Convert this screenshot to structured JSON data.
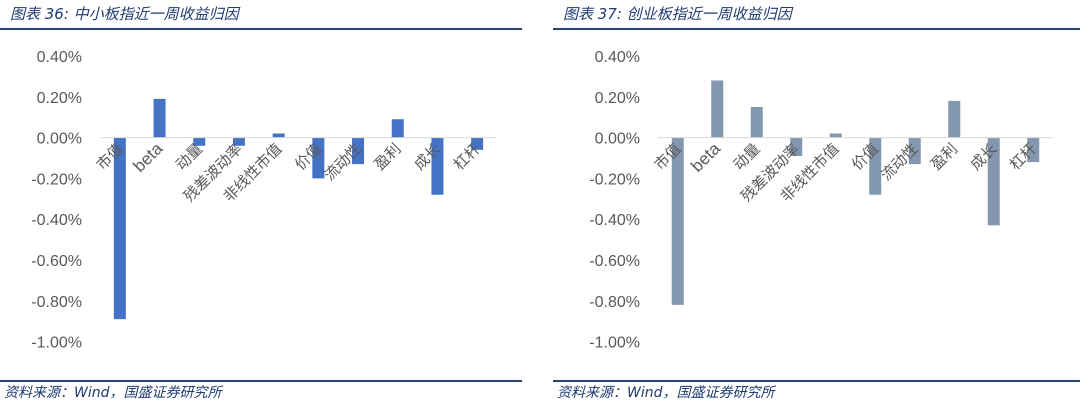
{
  "figures": [
    {
      "title": "图表 36:  中小板指近一周收益归因",
      "source": "资料来源：Wind，国盛证券研究所",
      "color": "#4472C4",
      "chart_data": {
        "type": "bar",
        "title": "图表 36:  中小板指近一周收益归因",
        "categories": [
          "市值",
          "beta",
          "动量",
          "残差波动率",
          "非线性市值",
          "价值",
          "流动性",
          "盈利",
          "成长",
          "杠杆"
        ],
        "values": [
          -0.89,
          0.19,
          -0.04,
          -0.04,
          0.02,
          -0.2,
          -0.13,
          0.09,
          -0.28,
          -0.06
        ],
        "ylim": [
          -1.0,
          0.4
        ],
        "yticks": [
          "0.40%",
          "0.20%",
          "0.00%",
          "-0.20%",
          "-0.40%",
          "-0.60%",
          "-0.80%",
          "-1.00%"
        ],
        "ytick_values": [
          0.4,
          0.2,
          0.0,
          -0.2,
          -0.4,
          -0.6,
          -0.8,
          -1.0
        ],
        "grid": false,
        "legend": "none",
        "xlabel": "",
        "ylabel": ""
      }
    },
    {
      "title": "图表 37:  创业板指近一周收益归因",
      "source": "资料来源：Wind，国盛证券研究所",
      "color": "#8497B0",
      "chart_data": {
        "type": "bar",
        "title": "图表 37:  创业板指近一周收益归因",
        "categories": [
          "市值",
          "beta",
          "动量",
          "残差波动率",
          "非线性市值",
          "价值",
          "流动性",
          "盈利",
          "成长",
          "杠杆"
        ],
        "values": [
          -0.82,
          0.28,
          0.15,
          -0.09,
          0.02,
          -0.28,
          -0.13,
          0.18,
          -0.43,
          -0.12
        ],
        "ylim": [
          -1.0,
          0.4
        ],
        "yticks": [
          "0.40%",
          "0.20%",
          "0.00%",
          "-0.20%",
          "-0.40%",
          "-0.60%",
          "-0.80%",
          "-1.00%"
        ],
        "ytick_values": [
          0.4,
          0.2,
          0.0,
          -0.2,
          -0.4,
          -0.6,
          -0.8,
          -1.0
        ],
        "grid": false,
        "legend": "none",
        "xlabel": "",
        "ylabel": ""
      }
    }
  ]
}
